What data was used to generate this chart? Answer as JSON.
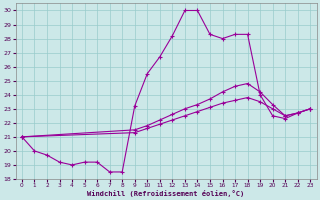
{
  "xlabel": "Windchill (Refroidissement éolien,°C)",
  "bg_color": "#cce8e8",
  "line_color": "#990099",
  "grid_color": "#99cccc",
  "xlim": [
    -0.5,
    23.5
  ],
  "ylim": [
    18.0,
    30.5
  ],
  "xticks": [
    0,
    1,
    2,
    3,
    4,
    5,
    6,
    7,
    8,
    9,
    10,
    11,
    12,
    13,
    14,
    15,
    16,
    17,
    18,
    19,
    20,
    21,
    22,
    23
  ],
  "yticks": [
    18,
    19,
    20,
    21,
    22,
    23,
    24,
    25,
    26,
    27,
    28,
    29,
    30
  ],
  "line1_x": [
    0,
    1,
    2,
    3,
    4,
    5,
    6,
    7,
    8,
    9,
    10,
    11,
    12,
    13,
    14,
    15,
    16,
    17,
    18,
    19,
    20,
    21,
    22,
    23
  ],
  "line1_y": [
    21.0,
    20.0,
    19.7,
    19.2,
    19.0,
    19.2,
    19.2,
    18.5,
    18.5,
    23.2,
    25.5,
    26.7,
    28.2,
    30.0,
    30.0,
    28.3,
    28.0,
    28.3,
    28.3,
    24.0,
    22.5,
    22.3,
    22.7,
    23.0
  ],
  "line2_x": [
    0,
    9,
    10,
    11,
    12,
    13,
    14,
    15,
    16,
    17,
    18,
    19,
    20,
    21,
    22,
    23
  ],
  "line2_y": [
    21.0,
    21.5,
    21.8,
    22.2,
    22.6,
    23.0,
    23.3,
    23.7,
    24.2,
    24.6,
    24.8,
    24.2,
    23.3,
    22.5,
    22.7,
    23.0
  ],
  "line3_x": [
    0,
    9,
    10,
    11,
    12,
    13,
    14,
    15,
    16,
    17,
    18,
    19,
    20,
    21,
    22,
    23
  ],
  "line3_y": [
    21.0,
    21.3,
    21.6,
    21.9,
    22.2,
    22.5,
    22.8,
    23.1,
    23.4,
    23.6,
    23.8,
    23.5,
    23.0,
    22.5,
    22.7,
    23.0
  ]
}
